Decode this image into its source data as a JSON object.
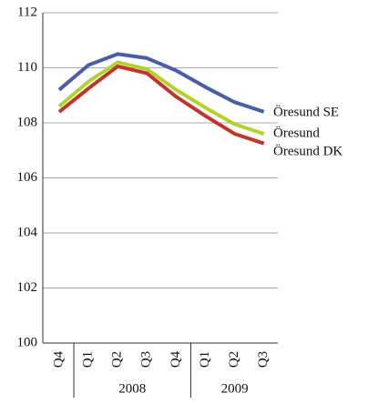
{
  "chart_data": {
    "type": "line",
    "categories": [
      "Q4",
      "Q1",
      "Q2",
      "Q3",
      "Q4",
      "Q1",
      "Q2",
      "Q3"
    ],
    "x_groups": [
      {
        "label": "2008",
        "from": 1,
        "to": 4
      },
      {
        "label": "2009",
        "from": 5,
        "to": 7
      }
    ],
    "series": [
      {
        "name": "Öresund SE",
        "color": "#4a5ea8",
        "values": [
          109.2,
          110.1,
          110.5,
          110.35,
          109.9,
          109.3,
          108.75,
          108.4
        ]
      },
      {
        "name": "Öresund",
        "color": "#b5d22c",
        "values": [
          108.6,
          109.5,
          110.2,
          109.95,
          109.2,
          108.55,
          107.95,
          107.6
        ]
      },
      {
        "name": "Öresund DK",
        "color": "#c0352e",
        "values": [
          108.4,
          109.25,
          110.05,
          109.8,
          108.95,
          108.25,
          107.6,
          107.25
        ]
      }
    ],
    "ylim": [
      100,
      112
    ],
    "yticks": [
      100,
      102,
      104,
      106,
      108,
      110,
      112
    ],
    "grid": true
  }
}
